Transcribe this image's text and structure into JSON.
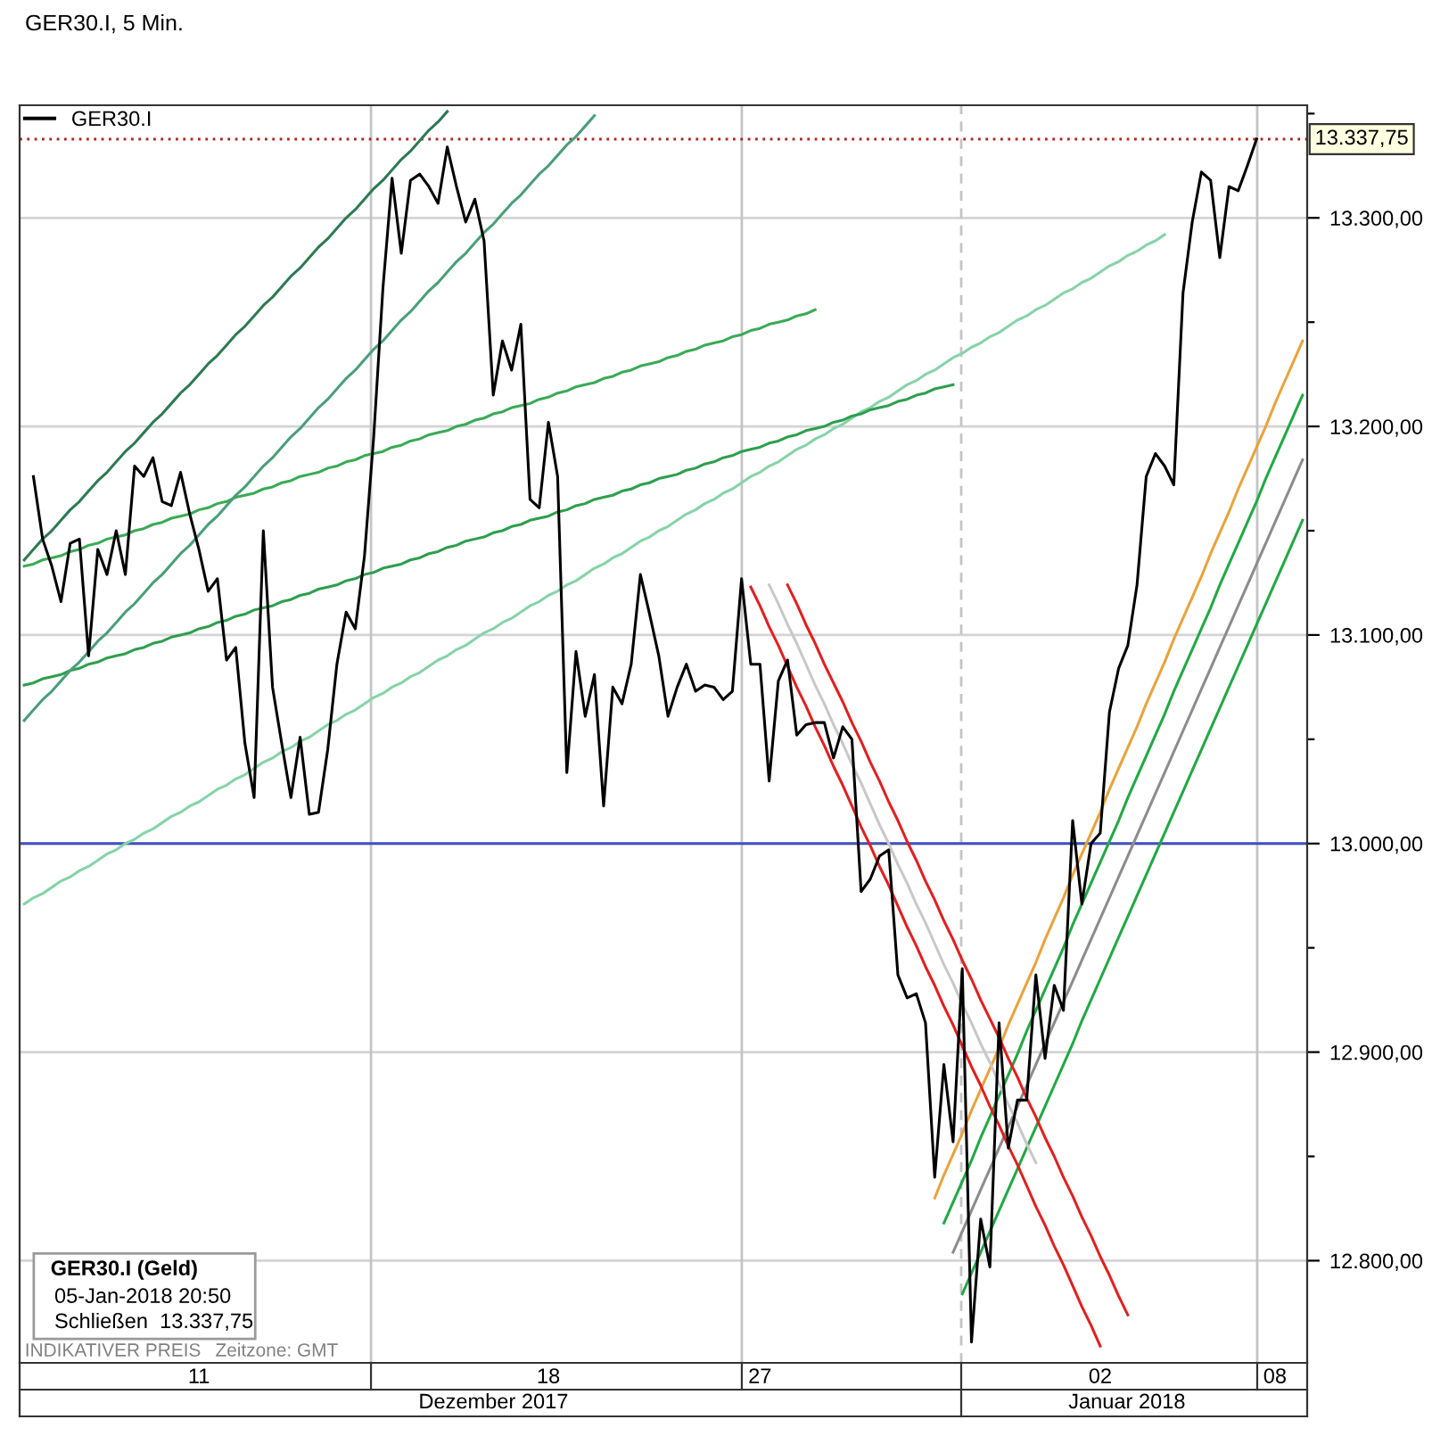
{
  "chart_data": {
    "type": "line",
    "title": "GER30.I, 5 Min.",
    "categories": [
      null,
      null,
      null,
      null,
      null,
      null,
      null,
      null,
      null,
      null,
      null,
      null,
      null,
      null,
      null,
      null,
      null,
      null,
      null,
      "11",
      null,
      null,
      null,
      null,
      null,
      null,
      null,
      null,
      null,
      null,
      null,
      null,
      null,
      null,
      null,
      null,
      null,
      null,
      null,
      null,
      null,
      null,
      null,
      null,
      null,
      null,
      null,
      null,
      null,
      null,
      null,
      null,
      null,
      null,
      null,
      null,
      null,
      "18",
      null,
      null,
      null,
      null,
      null,
      null,
      null,
      null,
      null,
      null,
      null,
      null,
      null,
      null,
      null,
      null,
      null,
      null,
      null,
      null,
      null,
      null,
      "27",
      null,
      null,
      null,
      null,
      null,
      null,
      null,
      null,
      null,
      null,
      null,
      null,
      null,
      null,
      null,
      null,
      null,
      null,
      null,
      null,
      null,
      null,
      null,
      null,
      null,
      null,
      null,
      null,
      null,
      null,
      null,
      null,
      null,
      null,
      null,
      null,
      "02",
      null,
      null,
      null,
      null,
      null,
      null,
      null,
      null,
      null,
      null,
      null,
      null,
      null,
      null,
      null,
      null,
      null,
      null,
      "08",
      null,
      null,
      null
    ],
    "ylim": [
      12751,
      13354
    ],
    "yticks": [
      {
        "value": 12800,
        "label": "12.800,00"
      },
      {
        "value": 12850,
        "label": null
      },
      {
        "value": 12900,
        "label": "12.900,00"
      },
      {
        "value": 12950,
        "label": null
      },
      {
        "value": 13000,
        "label": "13.000,00"
      },
      {
        "value": 13050,
        "label": null
      },
      {
        "value": 13100,
        "label": "13.100,00"
      },
      {
        "value": 13150,
        "label": null
      },
      {
        "value": 13200,
        "label": "13.200,00"
      },
      {
        "value": 13250,
        "label": null
      },
      {
        "value": 13300,
        "label": "13.300,00"
      },
      {
        "value": 13350,
        "label": null
      }
    ],
    "grid": "y",
    "legend": "top left",
    "series": [
      {
        "name": "GER30.I",
        "color": "#000000",
        "values": [
          null,
          13176,
          13146,
          13133,
          13116,
          13144,
          13146,
          13090,
          13141,
          13129,
          13150,
          13129,
          13181,
          13176,
          13185,
          13164,
          13162,
          13178,
          13158,
          13141,
          13121,
          13127,
          13088,
          13094,
          13048,
          13022,
          13150,
          13075,
          13048,
          13022,
          13051,
          13014,
          13015,
          13045,
          13086,
          13111,
          13103,
          13138,
          13195,
          13266,
          13319,
          13283,
          13318,
          13321,
          13315,
          13307,
          13334,
          13315,
          13298,
          13309,
          13289,
          13215,
          13241,
          13227,
          13249,
          13165,
          13161,
          13202,
          13176,
          13034,
          13092,
          13061,
          13081,
          13018,
          13075,
          13067,
          13086,
          13129,
          13110,
          13090,
          13061,
          13075,
          13086,
          13073,
          13076,
          13075,
          13069,
          13073,
          13127,
          13086,
          13086,
          13030,
          13078,
          13088,
          13052,
          13057,
          13058,
          13058,
          13041,
          13056,
          13050,
          12977,
          12983,
          12994,
          12997,
          12937,
          12926,
          12928,
          12914,
          12840,
          12894,
          12857,
          12940,
          12761,
          12820,
          12797,
          12914,
          12854,
          12877,
          12877,
          12937,
          12897,
          12932,
          12920,
          13011,
          12971,
          13000,
          13005,
          13063,
          13084,
          13095,
          13124,
          13176,
          13187,
          13181,
          13172,
          13264,
          13298,
          13322,
          13318,
          13281,
          13315,
          13313,
          13325,
          13337.75,
          null,
          null,
          null,
          null,
          null
        ]
      },
      {
        "type": "line",
        "color": "#2d7a52",
        "values": [
          13136,
          13141,
          13146,
          13150,
          13155,
          13160,
          13164,
          13169,
          13174,
          13178,
          13183,
          13188,
          13192,
          13197,
          13202,
          13206,
          13211,
          13216,
          13220,
          13225,
          13230,
          13234,
          13239,
          13244,
          13248,
          13253,
          13258,
          13262,
          13267,
          13272,
          13276,
          13281,
          13286,
          13290,
          13295,
          13300,
          13304,
          13309,
          13314,
          13318,
          13323,
          13328,
          13332,
          13337,
          13342,
          13346,
          13351,
          null,
          null,
          null,
          null,
          null,
          null,
          null,
          null,
          null,
          null,
          null,
          null,
          null,
          null,
          null,
          null,
          null,
          null,
          null,
          null,
          null,
          null,
          null,
          null,
          null,
          null,
          null,
          null,
          null,
          null,
          null,
          null,
          null,
          null,
          null,
          null,
          null,
          null,
          null,
          null,
          null,
          null,
          null,
          null,
          null,
          null,
          null,
          null,
          null,
          null,
          null,
          null,
          null,
          null,
          null,
          null,
          null,
          null,
          null,
          null,
          null,
          null,
          null,
          null,
          null,
          null,
          null,
          null,
          null,
          null,
          null,
          null,
          null,
          null,
          null,
          null,
          null,
          null,
          null,
          null,
          null,
          null,
          null,
          null,
          null,
          null,
          null,
          null,
          null,
          null,
          null,
          null,
          null
        ]
      },
      {
        "type": "line",
        "color": "#4a9e7a",
        "values": [
          13059,
          13064,
          13069,
          13073,
          13078,
          13083,
          13087,
          13092,
          13097,
          13101,
          13106,
          13111,
          13115,
          13120,
          13125,
          13129,
          13134,
          13139,
          13143,
          13148,
          13153,
          13157,
          13162,
          13167,
          13171,
          13176,
          13181,
          13185,
          13190,
          13195,
          13199,
          13204,
          13209,
          13213,
          13218,
          13223,
          13227,
          13232,
          13237,
          13241,
          13246,
          13251,
          13255,
          13260,
          13265,
          13269,
          13274,
          13279,
          13283,
          13288,
          13293,
          13297,
          13302,
          13307,
          13311,
          13316,
          13321,
          13325,
          13330,
          13335,
          13339,
          13344,
          13349,
          null,
          null,
          null,
          null,
          null,
          null,
          null,
          null,
          null,
          null,
          null,
          null,
          null,
          null,
          null,
          null,
          null,
          null,
          null,
          null,
          null,
          null,
          null,
          null,
          null,
          null,
          null,
          null,
          null,
          null,
          null,
          null,
          null,
          null,
          null,
          null,
          null,
          null,
          null,
          null,
          null,
          null,
          null,
          null,
          null,
          null,
          null,
          null,
          null,
          null,
          null,
          null,
          null,
          null,
          null,
          null,
          null,
          null,
          null,
          null,
          null,
          null,
          null,
          null,
          null,
          null,
          null,
          null,
          null,
          null,
          null,
          null,
          null,
          null,
          null,
          null,
          null
        ]
      },
      {
        "type": "line",
        "color": "#3aaa55",
        "values": [
          13133,
          13134,
          13136,
          13137,
          13138,
          13140,
          13141,
          13143,
          13144,
          13146,
          13147,
          13148,
          13150,
          13151,
          13153,
          13154,
          13156,
          13157,
          13158,
          13160,
          13161,
          13163,
          13164,
          13166,
          13167,
          13168,
          13170,
          13171,
          13173,
          13174,
          13176,
          13177,
          13178,
          13180,
          13181,
          13183,
          13184,
          13186,
          13187,
          13188,
          13190,
          13191,
          13193,
          13194,
          13196,
          13197,
          13198,
          13200,
          13201,
          13203,
          13204,
          13206,
          13207,
          13209,
          13210,
          13211,
          13213,
          13214,
          13216,
          13217,
          13219,
          13220,
          13221,
          13223,
          13224,
          13226,
          13227,
          13229,
          13230,
          13231,
          13233,
          13234,
          13236,
          13237,
          13239,
          13240,
          13241,
          13243,
          13244,
          13246,
          13247,
          13249,
          13250,
          13251,
          13253,
          13254,
          13256,
          null,
          null,
          null,
          null,
          null,
          null,
          null,
          null,
          null,
          null,
          null,
          null,
          null,
          null,
          null,
          null,
          null,
          null,
          null,
          null,
          null,
          null,
          null,
          null,
          null,
          null,
          null,
          null,
          null,
          null,
          null,
          null,
          null,
          null,
          null,
          null,
          null,
          null,
          null,
          null,
          null,
          null,
          null,
          null,
          null,
          null,
          null,
          null,
          null,
          null,
          null,
          null,
          null
        ]
      },
      {
        "type": "line",
        "color": "#2e9e4e",
        "values": [
          13076,
          13077,
          13079,
          13080,
          13081,
          13083,
          13084,
          13086,
          13087,
          13089,
          13090,
          13091,
          13093,
          13094,
          13096,
          13097,
          13099,
          13100,
          13101,
          13103,
          13104,
          13106,
          13107,
          13109,
          13110,
          13112,
          13113,
          13114,
          13116,
          13117,
          13119,
          13120,
          13122,
          13123,
          13124,
          13126,
          13127,
          13129,
          13130,
          13132,
          13133,
          13134,
          13136,
          13137,
          13139,
          13140,
          13142,
          13143,
          13145,
          13146,
          13147,
          13149,
          13150,
          13152,
          13153,
          13155,
          13156,
          13157,
          13159,
          13160,
          13162,
          13163,
          13165,
          13166,
          13167,
          13169,
          13170,
          13172,
          13173,
          13175,
          13176,
          13177,
          13179,
          13180,
          13182,
          13183,
          13185,
          13186,
          13188,
          13189,
          13190,
          13192,
          13193,
          13195,
          13196,
          13198,
          13199,
          13200,
          13202,
          13203,
          13205,
          13206,
          13208,
          13209,
          13210,
          13212,
          13213,
          13215,
          13216,
          13218,
          13219,
          13220,
          null,
          null,
          null,
          null,
          null,
          null,
          null,
          null,
          null,
          null,
          null,
          null,
          null,
          null,
          null,
          null,
          null,
          null,
          null,
          null,
          null,
          null,
          null,
          null,
          null,
          null,
          null,
          null,
          null,
          null,
          null,
          null,
          null,
          null,
          null,
          null,
          null,
          null
        ]
      },
      {
        "type": "line",
        "color": "#86d3a8",
        "values": [
          12971,
          12974,
          12976,
          12979,
          12982,
          12984,
          12987,
          12989,
          12992,
          12995,
          12997,
          13000,
          13002,
          13005,
          13007,
          13010,
          13013,
          13015,
          13018,
          13020,
          13023,
          13026,
          13028,
          13031,
          13033,
          13036,
          13039,
          13041,
          13044,
          13046,
          13049,
          13051,
          13054,
          13057,
          13059,
          13062,
          13064,
          13067,
          13070,
          13072,
          13075,
          13077,
          13080,
          13082,
          13085,
          13088,
          13090,
          13093,
          13095,
          13098,
          13101,
          13103,
          13106,
          13108,
          13111,
          13114,
          13116,
          13119,
          13121,
          13124,
          13126,
          13129,
          13132,
          13134,
          13137,
          13139,
          13142,
          13145,
          13147,
          13150,
          13152,
          13155,
          13158,
          13160,
          13163,
          13165,
          13168,
          13170,
          13173,
          13176,
          13178,
          13181,
          13183,
          13186,
          13189,
          13191,
          13194,
          13196,
          13199,
          13201,
          13204,
          13207,
          13209,
          13212,
          13214,
          13217,
          13220,
          13222,
          13225,
          13227,
          13230,
          13233,
          13235,
          13238,
          13240,
          13243,
          13245,
          13248,
          13251,
          13253,
          13256,
          13258,
          13261,
          13264,
          13266,
          13269,
          13271,
          13274,
          13277,
          13279,
          13282,
          13284,
          13287,
          13289,
          13292,
          null,
          null,
          null,
          null,
          null,
          null,
          null,
          null,
          null,
          null,
          null,
          null,
          null,
          null,
          null
        ]
      },
      {
        "type": "line",
        "color": "#e02020",
        "values": [
          null,
          null,
          null,
          null,
          null,
          null,
          null,
          null,
          null,
          null,
          null,
          null,
          null,
          null,
          null,
          null,
          null,
          null,
          null,
          null,
          null,
          null,
          null,
          null,
          null,
          null,
          null,
          null,
          null,
          null,
          null,
          null,
          null,
          null,
          null,
          null,
          null,
          null,
          null,
          null,
          null,
          null,
          null,
          null,
          null,
          null,
          null,
          null,
          null,
          null,
          null,
          null,
          null,
          null,
          null,
          null,
          null,
          null,
          null,
          null,
          null,
          null,
          null,
          null,
          null,
          null,
          null,
          null,
          null,
          null,
          null,
          null,
          null,
          null,
          null,
          null,
          null,
          null,
          null,
          13123,
          13114,
          13104,
          13095,
          13085,
          13075,
          13066,
          13056,
          13047,
          13037,
          13028,
          13018,
          13008,
          12999,
          12989,
          12980,
          12970,
          12960,
          12951,
          12941,
          12932,
          12922,
          12913,
          12903,
          12893,
          12884,
          12874,
          12865,
          12855,
          12846,
          12836,
          12826,
          12817,
          12807,
          12798,
          12788,
          12778,
          12769,
          12759,
          null,
          null,
          null,
          null,
          null,
          null,
          null,
          null,
          null,
          null,
          null,
          null,
          null,
          null,
          null,
          null,
          null,
          null,
          null,
          null,
          null,
          null
        ]
      },
      {
        "type": "line",
        "color": "#c8c8c8",
        "values": [
          null,
          null,
          null,
          null,
          null,
          null,
          null,
          null,
          null,
          null,
          null,
          null,
          null,
          null,
          null,
          null,
          null,
          null,
          null,
          null,
          null,
          null,
          null,
          null,
          null,
          null,
          null,
          null,
          null,
          null,
          null,
          null,
          null,
          null,
          null,
          null,
          null,
          null,
          null,
          null,
          null,
          null,
          null,
          null,
          null,
          null,
          null,
          null,
          null,
          null,
          null,
          null,
          null,
          null,
          null,
          null,
          null,
          null,
          null,
          null,
          null,
          null,
          null,
          null,
          null,
          null,
          null,
          null,
          null,
          null,
          null,
          null,
          null,
          null,
          null,
          null,
          null,
          null,
          null,
          null,
          null,
          13124,
          13115,
          13105,
          13096,
          13086,
          13076,
          13067,
          13057,
          13048,
          13038,
          13029,
          13019,
          13009,
          13000,
          12990,
          12981,
          12971,
          12962,
          12952,
          12942,
          12933,
          12923,
          12914,
          12904,
          12895,
          12885,
          12875,
          12866,
          12856,
          12847,
          null,
          null,
          null,
          null,
          null,
          null,
          null,
          null,
          null,
          null,
          null,
          null,
          null,
          null,
          null,
          null,
          null,
          null,
          null,
          null,
          null,
          null,
          null,
          null,
          null,
          null,
          null,
          null,
          null
        ]
      },
      {
        "type": "line",
        "color": "#e02020",
        "values": [
          null,
          null,
          null,
          null,
          null,
          null,
          null,
          null,
          null,
          null,
          null,
          null,
          null,
          null,
          null,
          null,
          null,
          null,
          null,
          null,
          null,
          null,
          null,
          null,
          null,
          null,
          null,
          null,
          null,
          null,
          null,
          null,
          null,
          null,
          null,
          null,
          null,
          null,
          null,
          null,
          null,
          null,
          null,
          null,
          null,
          null,
          null,
          null,
          null,
          null,
          null,
          null,
          null,
          null,
          null,
          null,
          null,
          null,
          null,
          null,
          null,
          null,
          null,
          null,
          null,
          null,
          null,
          null,
          null,
          null,
          null,
          null,
          null,
          null,
          null,
          null,
          null,
          null,
          null,
          null,
          null,
          null,
          null,
          13124,
          13115,
          13105,
          13096,
          13086,
          13077,
          13068,
          13058,
          13049,
          13039,
          13030,
          13020,
          13011,
          13001,
          12992,
          12982,
          12973,
          12963,
          12954,
          12944,
          12935,
          12925,
          12916,
          12907,
          12897,
          12888,
          12878,
          12869,
          12859,
          12850,
          12840,
          12831,
          12821,
          12812,
          12802,
          12793,
          12783,
          12774,
          null,
          null,
          null,
          null,
          null,
          null,
          null,
          null,
          null,
          null,
          null,
          null,
          null,
          null,
          null,
          null,
          null,
          null,
          null
        ]
      },
      {
        "type": "line",
        "color": "#e8a33c",
        "values": [
          null,
          null,
          null,
          null,
          null,
          null,
          null,
          null,
          null,
          null,
          null,
          null,
          null,
          null,
          null,
          null,
          null,
          null,
          null,
          null,
          null,
          null,
          null,
          null,
          null,
          null,
          null,
          null,
          null,
          null,
          null,
          null,
          null,
          null,
          null,
          null,
          null,
          null,
          null,
          null,
          null,
          null,
          null,
          null,
          null,
          null,
          null,
          null,
          null,
          null,
          null,
          null,
          null,
          null,
          null,
          null,
          null,
          null,
          null,
          null,
          null,
          null,
          null,
          null,
          null,
          null,
          null,
          null,
          null,
          null,
          null,
          null,
          null,
          null,
          null,
          null,
          null,
          null,
          null,
          null,
          null,
          null,
          null,
          null,
          null,
          null,
          null,
          null,
          null,
          null,
          null,
          null,
          null,
          null,
          null,
          null,
          null,
          null,
          null,
          12830,
          12841,
          12851,
          12861,
          12872,
          12882,
          12892,
          12902,
          12913,
          12923,
          12933,
          12943,
          12954,
          12964,
          12974,
          12985,
          12995,
          13005,
          13015,
          13026,
          13036,
          13046,
          13056,
          13067,
          13077,
          13087,
          13098,
          13108,
          13118,
          13128,
          13139,
          13149,
          13159,
          13170,
          13180,
          13190,
          13200,
          13211,
          13221,
          13231,
          13241
        ]
      },
      {
        "type": "line",
        "color": "#22a845",
        "values": [
          null,
          null,
          null,
          null,
          null,
          null,
          null,
          null,
          null,
          null,
          null,
          null,
          null,
          null,
          null,
          null,
          null,
          null,
          null,
          null,
          null,
          null,
          null,
          null,
          null,
          null,
          null,
          null,
          null,
          null,
          null,
          null,
          null,
          null,
          null,
          null,
          null,
          null,
          null,
          null,
          null,
          null,
          null,
          null,
          null,
          null,
          null,
          null,
          null,
          null,
          null,
          null,
          null,
          null,
          null,
          null,
          null,
          null,
          null,
          null,
          null,
          null,
          null,
          null,
          null,
          null,
          null,
          null,
          null,
          null,
          null,
          null,
          null,
          null,
          null,
          null,
          null,
          null,
          null,
          null,
          null,
          null,
          null,
          null,
          null,
          null,
          null,
          null,
          null,
          null,
          null,
          null,
          null,
          null,
          null,
          null,
          null,
          null,
          null,
          null,
          12818,
          12828,
          12838,
          12848,
          12859,
          12869,
          12879,
          12889,
          12899,
          12910,
          12920,
          12930,
          12940,
          12950,
          12961,
          12971,
          12981,
          12991,
          13001,
          13011,
          13022,
          13032,
          13042,
          13052,
          13062,
          13073,
          13083,
          13093,
          13103,
          13113,
          13124,
          13134,
          13144,
          13154,
          13164,
          13175,
          13185,
          13195,
          13205,
          13215
        ]
      },
      {
        "type": "line",
        "color": "#8c8c8c",
        "values": [
          null,
          null,
          null,
          null,
          null,
          null,
          null,
          null,
          null,
          null,
          null,
          null,
          null,
          null,
          null,
          null,
          null,
          null,
          null,
          null,
          null,
          null,
          null,
          null,
          null,
          null,
          null,
          null,
          null,
          null,
          null,
          null,
          null,
          null,
          null,
          null,
          null,
          null,
          null,
          null,
          null,
          null,
          null,
          null,
          null,
          null,
          null,
          null,
          null,
          null,
          null,
          null,
          null,
          null,
          null,
          null,
          null,
          null,
          null,
          null,
          null,
          null,
          null,
          null,
          null,
          null,
          null,
          null,
          null,
          null,
          null,
          null,
          null,
          null,
          null,
          null,
          null,
          null,
          null,
          null,
          null,
          null,
          null,
          null,
          null,
          null,
          null,
          null,
          null,
          null,
          null,
          null,
          null,
          null,
          null,
          null,
          null,
          null,
          null,
          null,
          null,
          12804,
          12814,
          12824,
          12834,
          12844,
          12854,
          12864,
          12874,
          12884,
          12894,
          12904,
          12914,
          12924,
          12934,
          12944,
          12954,
          12964,
          12974,
          12984,
          12994,
          13004,
          13014,
          13024,
          13034,
          13044,
          13054,
          13064,
          13074,
          13084,
          13094,
          13104,
          13114,
          13124,
          13134,
          13144,
          13154,
          13164,
          13174,
          13184
        ]
      },
      {
        "type": "line",
        "color": "#22a845",
        "values": [
          null,
          null,
          null,
          null,
          null,
          null,
          null,
          null,
          null,
          null,
          null,
          null,
          null,
          null,
          null,
          null,
          null,
          null,
          null,
          null,
          null,
          null,
          null,
          null,
          null,
          null,
          null,
          null,
          null,
          null,
          null,
          null,
          null,
          null,
          null,
          null,
          null,
          null,
          null,
          null,
          null,
          null,
          null,
          null,
          null,
          null,
          null,
          null,
          null,
          null,
          null,
          null,
          null,
          null,
          null,
          null,
          null,
          null,
          null,
          null,
          null,
          null,
          null,
          null,
          null,
          null,
          null,
          null,
          null,
          null,
          null,
          null,
          null,
          null,
          null,
          null,
          null,
          null,
          null,
          null,
          null,
          null,
          null,
          null,
          null,
          null,
          null,
          null,
          null,
          null,
          null,
          null,
          null,
          null,
          null,
          null,
          null,
          null,
          null,
          null,
          null,
          null,
          12784,
          12794,
          12804,
          12814,
          12824,
          12834,
          12844,
          12854,
          12864,
          12874,
          12884,
          12894,
          12904,
          12915,
          12925,
          12935,
          12945,
          12955,
          12965,
          12975,
          12985,
          12995,
          13005,
          13015,
          13025,
          13035,
          13045,
          13055,
          13065,
          13075,
          13085,
          13095,
          13105,
          13115,
          13125,
          13135,
          13145,
          13155
        ]
      }
    ],
    "ref_lines": [
      {
        "axis": "y",
        "value": 13000,
        "color": "#4050c0"
      },
      {
        "axis": "y",
        "value": 13337.75,
        "label": "13.337,75",
        "color": "#b22222",
        "line_style": "dotted"
      }
    ],
    "annotations": [
      "GER30.I (Geld)",
      "05-Jan-2018 20:50",
      "Schließen  13.337,75",
      "INDIKATIVER PREIS",
      "Zeitzone: GMT",
      "Dezember 2017",
      "Januar 2018"
    ]
  }
}
